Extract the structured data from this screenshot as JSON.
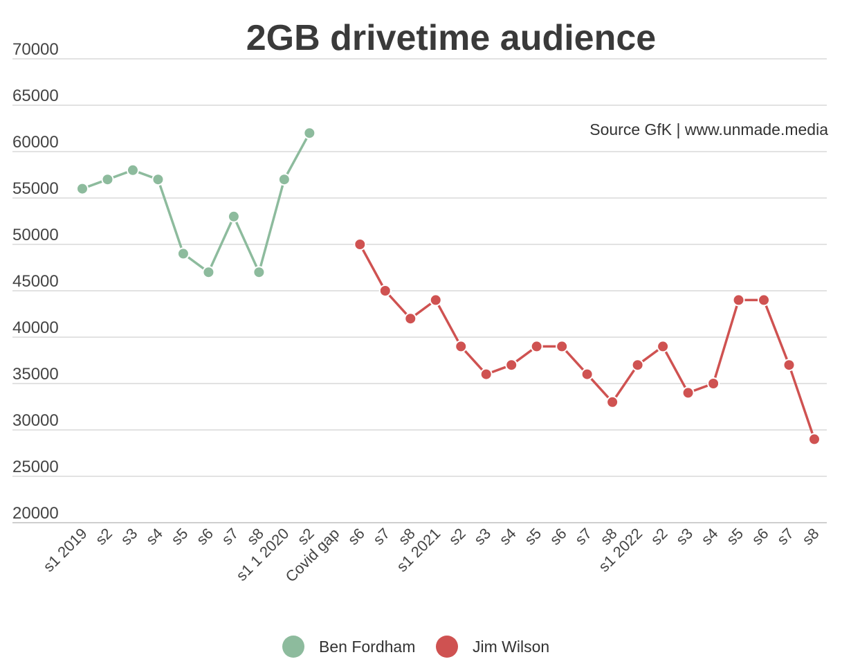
{
  "chart_data": {
    "type": "line",
    "title": "2GB drivetime audience",
    "annotation": "Source GfK | www.unmade.media",
    "xlabel": "",
    "ylabel": "",
    "ylim": [
      20000,
      70000
    ],
    "yticks": [
      70000,
      65000,
      60000,
      55000,
      50000,
      45000,
      40000,
      35000,
      30000,
      25000,
      20000
    ],
    "grid": true,
    "legend_position": "bottom-center",
    "categories": [
      "s1 2019",
      "s2",
      "s3",
      "s4",
      "s5",
      "s6",
      "s7",
      "s8",
      "s1 1 2020",
      "s2",
      "Covid gap",
      "s6",
      "s7",
      "s8",
      "s1 2021",
      "s2",
      "s3",
      "s4",
      "s5",
      "s6",
      "s7",
      "s8",
      "s1 2022",
      "s2",
      "s3",
      "s4",
      "s5",
      "s6",
      "s7",
      "s8"
    ],
    "series": [
      {
        "name": "Ben Fordham",
        "color": "#8dbb9d",
        "values": [
          56000,
          57000,
          58000,
          57000,
          49000,
          47000,
          53000,
          47000,
          57000,
          62000,
          null,
          null,
          null,
          null,
          null,
          null,
          null,
          null,
          null,
          null,
          null,
          null,
          null,
          null,
          null,
          null,
          null,
          null,
          null,
          null
        ]
      },
      {
        "name": "Jim Wilson",
        "color": "#cf5251",
        "values": [
          null,
          null,
          null,
          null,
          null,
          null,
          null,
          null,
          null,
          null,
          null,
          50000,
          45000,
          42000,
          44000,
          39000,
          36000,
          37000,
          39000,
          39000,
          36000,
          33000,
          37000,
          39000,
          34000,
          35000,
          44000,
          44000,
          37000,
          29000
        ]
      }
    ]
  }
}
